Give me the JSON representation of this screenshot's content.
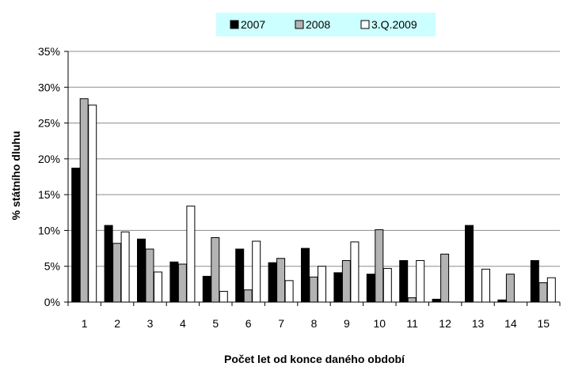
{
  "chart_data": {
    "type": "bar",
    "title": "",
    "xlabel": "Počet let od konce daného období",
    "ylabel": "% státního dluhu",
    "categories": [
      "1",
      "2",
      "3",
      "4",
      "5",
      "6",
      "7",
      "8",
      "9",
      "10",
      "11",
      "12",
      "13",
      "14",
      "15"
    ],
    "ylim": [
      0,
      35
    ],
    "yticks": [
      0,
      5,
      10,
      15,
      20,
      25,
      30,
      35
    ],
    "ytick_labels": [
      "0%",
      "5%",
      "10%",
      "15%",
      "20%",
      "25%",
      "30%",
      "35%"
    ],
    "grid": true,
    "legend_position": "top",
    "legend_background": "#ccffff",
    "series": [
      {
        "name": "2007",
        "color": "#000000",
        "values": [
          18.7,
          10.7,
          8.8,
          5.6,
          3.6,
          7.4,
          5.5,
          7.5,
          4.1,
          3.9,
          5.8,
          0.4,
          10.7,
          0.3,
          5.8
        ]
      },
      {
        "name": "2008",
        "color": "#b3b3b3",
        "values": [
          28.4,
          8.2,
          7.4,
          5.3,
          9.0,
          1.7,
          6.1,
          3.5,
          5.8,
          10.1,
          0.6,
          6.7,
          0.0,
          3.9,
          2.7
        ]
      },
      {
        "name": "3.Q.2009",
        "color": "#ffffff",
        "values": [
          27.5,
          9.8,
          4.2,
          13.4,
          1.5,
          8.5,
          3.0,
          5.0,
          8.4,
          4.7,
          5.8,
          0.0,
          4.6,
          0.0,
          3.4
        ]
      }
    ]
  }
}
